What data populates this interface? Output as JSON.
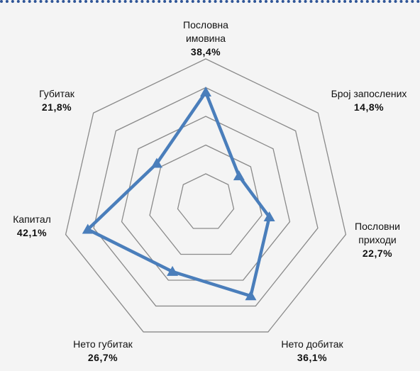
{
  "chart_data": {
    "type": "radar",
    "categories": [
      "Пословна имовина",
      "Број запослених",
      "Пословни приходи",
      "Нето добитак",
      "Нето губитак",
      "Капитал",
      "Губитак"
    ],
    "values": [
      38.4,
      14.8,
      22.7,
      36.1,
      26.7,
      42.1,
      21.8
    ],
    "value_labels": [
      "38,4%",
      "14,8%",
      "22,7%",
      "36,1%",
      "26,7%",
      "42,1%",
      "21,8%"
    ],
    "color": "#4a7ebb",
    "rlim": [
      0,
      50
    ],
    "rticks": [
      10,
      20,
      30,
      40,
      50
    ],
    "grid": true
  }
}
